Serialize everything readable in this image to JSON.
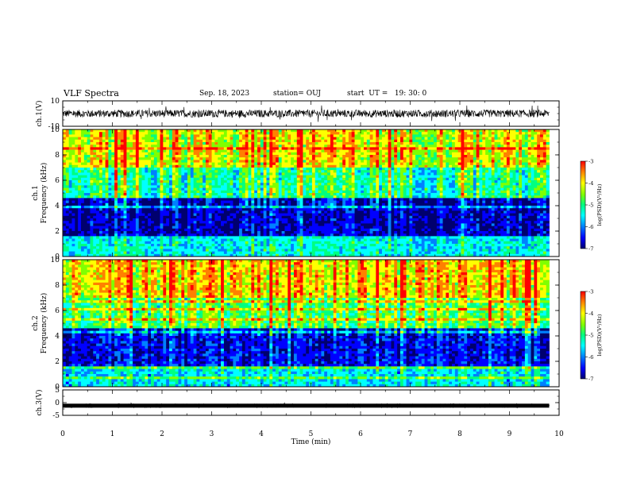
{
  "header": {
    "title": "VLF Spectra",
    "date": "Sep. 18, 2023",
    "station": "station= OUJ",
    "start": "start  UT =   19: 30: 0"
  },
  "colors": {
    "colormap": [
      "#00006e",
      "#0000ff",
      "#0080ff",
      "#00ffff",
      "#00ff80",
      "#80ff00",
      "#ffff00",
      "#ff8000",
      "#ff0000"
    ],
    "trace": "#000000",
    "background": "#ffffff"
  },
  "chart_data": [
    {
      "type": "line",
      "panel": "waveform-ch1",
      "ylabel": "ch.1(V)",
      "ylim": [
        -10,
        10
      ],
      "y_ticks": [
        "10",
        "-10"
      ],
      "xlim": [
        0,
        10
      ],
      "approx_level": 0,
      "approx_amplitude": 3
    },
    {
      "type": "heatmap",
      "panel": "spectrogram-ch1",
      "ylabel": [
        "ch.1",
        "Frequency  (kHz)"
      ],
      "ylim": [
        0,
        10
      ],
      "y_ticks": [
        "0",
        "2",
        "4",
        "6",
        "8",
        "10"
      ],
      "xlim": [
        0,
        9.8
      ],
      "colorbar": {
        "label": "log(PSD)(V²/Hz)",
        "range": [
          -7,
          -3
        ],
        "ticks": [
          "-3",
          "-4",
          "-5",
          "-6",
          "-7"
        ]
      },
      "bands": [
        {
          "freq_khz": [
            0,
            1.5
          ],
          "level": -5.2
        },
        {
          "freq_khz": [
            1.5,
            4.5
          ],
          "level": -6.5
        },
        {
          "freq_khz": [
            4.5,
            7
          ],
          "level": -4.8
        },
        {
          "freq_khz": [
            7,
            10
          ],
          "level": -3.8
        }
      ]
    },
    {
      "type": "heatmap",
      "panel": "spectrogram-ch2",
      "ylabel": [
        "ch.2",
        "Frequency  (kHz)"
      ],
      "ylim": [
        0,
        10
      ],
      "y_ticks": [
        "0",
        "2",
        "4",
        "6",
        "8",
        "10"
      ],
      "xlim": [
        0,
        9.8
      ],
      "colorbar": {
        "label": "log(PSD)(V²/Hz)",
        "range": [
          -7,
          -3
        ],
        "ticks": [
          "-3",
          "-4",
          "-5",
          "-6",
          "-7"
        ]
      },
      "bands": [
        {
          "freq_khz": [
            0,
            1.5
          ],
          "level": -5.3
        },
        {
          "freq_khz": [
            1.5,
            4.5
          ],
          "level": -6.3
        },
        {
          "freq_khz": [
            4.5,
            7
          ],
          "level": -4.5
        },
        {
          "freq_khz": [
            7,
            10
          ],
          "level": -3.6
        }
      ]
    },
    {
      "type": "line",
      "panel": "waveform-ch3",
      "ylabel": "ch.3(V)",
      "ylim": [
        -5,
        5
      ],
      "y_ticks": [
        "5",
        "0",
        "-5"
      ],
      "xlim": [
        0,
        10
      ],
      "approx_level": -1.2,
      "approx_amplitude": 0.3
    }
  ],
  "x_axis": {
    "label": "Time  (min)",
    "ticks": [
      "0",
      "1",
      "2",
      "3",
      "4",
      "5",
      "6",
      "7",
      "8",
      "9",
      "10"
    ],
    "range": [
      0,
      10
    ]
  }
}
